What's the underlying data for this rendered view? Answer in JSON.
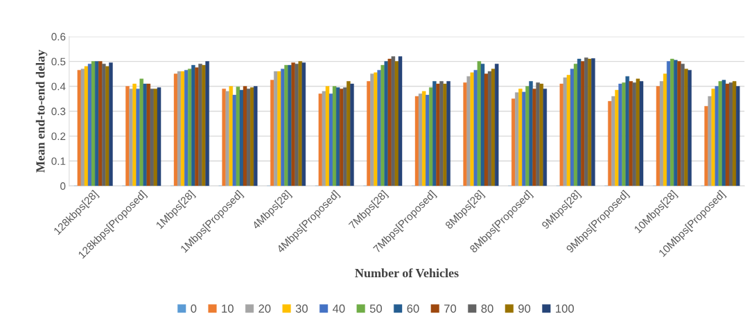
{
  "chart_data": {
    "type": "bar",
    "xlabel": "Number of Vehicles",
    "ylabel": "Mean end-to-end delay",
    "categories": [
      "128kbps[28]",
      "128kbps[Proposed]",
      "1Mbps[28]",
      "1Mbps[Proposed]",
      "4Mbps[28]",
      "4Mbps[Proposed]",
      "7Mbps[28]",
      "7Mbps[Proposed]",
      "8Mbps[28]",
      "8Mbps[Proposed]",
      "9Mbps[28]",
      "9Mbps[Proposed]",
      "10Mbps[28]",
      "10Mbps[Proposed]"
    ],
    "series": [
      {
        "name": "0",
        "color": "#5b9bd5",
        "values": [
          0,
          0,
          0,
          0,
          0,
          0,
          0,
          0,
          0,
          0,
          0,
          0,
          0,
          0
        ]
      },
      {
        "name": "10",
        "color": "#ed7d31",
        "values": [
          0.465,
          0.4,
          0.45,
          0.39,
          0.425,
          0.37,
          0.42,
          0.36,
          0.415,
          0.35,
          0.41,
          0.34,
          0.4,
          0.32
        ]
      },
      {
        "name": "20",
        "color": "#a5a5a5",
        "values": [
          0.47,
          0.39,
          0.46,
          0.38,
          0.46,
          0.38,
          0.45,
          0.37,
          0.44,
          0.375,
          0.435,
          0.36,
          0.42,
          0.36
        ]
      },
      {
        "name": "30",
        "color": "#ffc000",
        "values": [
          0.48,
          0.41,
          0.46,
          0.4,
          0.46,
          0.4,
          0.455,
          0.38,
          0.455,
          0.39,
          0.445,
          0.385,
          0.45,
          0.39
        ]
      },
      {
        "name": "40",
        "color": "#4472c4",
        "values": [
          0.49,
          0.39,
          0.465,
          0.365,
          0.47,
          0.37,
          0.465,
          0.365,
          0.465,
          0.377,
          0.47,
          0.41,
          0.5,
          0.4
        ]
      },
      {
        "name": "50",
        "color": "#70ad47",
        "values": [
          0.5,
          0.43,
          0.47,
          0.398,
          0.485,
          0.4,
          0.485,
          0.395,
          0.5,
          0.4,
          0.49,
          0.415,
          0.51,
          0.42
        ]
      },
      {
        "name": "60",
        "color": "#255e91",
        "values": [
          0.5,
          0.41,
          0.485,
          0.385,
          0.485,
          0.395,
          0.5,
          0.42,
          0.49,
          0.42,
          0.51,
          0.44,
          0.505,
          0.425
        ]
      },
      {
        "name": "70",
        "color": "#9e480e",
        "values": [
          0.5,
          0.41,
          0.475,
          0.4,
          0.495,
          0.39,
          0.51,
          0.41,
          0.45,
          0.39,
          0.5,
          0.42,
          0.5,
          0.41
        ]
      },
      {
        "name": "80",
        "color": "#636363",
        "values": [
          0.49,
          0.39,
          0.49,
          0.39,
          0.49,
          0.395,
          0.52,
          0.42,
          0.46,
          0.415,
          0.515,
          0.415,
          0.49,
          0.415
        ]
      },
      {
        "name": "90",
        "color": "#997300",
        "values": [
          0.48,
          0.39,
          0.485,
          0.395,
          0.5,
          0.42,
          0.5,
          0.41,
          0.47,
          0.41,
          0.51,
          0.43,
          0.47,
          0.42
        ]
      },
      {
        "name": "100",
        "color": "#264478",
        "values": [
          0.495,
          0.395,
          0.5,
          0.4,
          0.495,
          0.41,
          0.52,
          0.42,
          0.49,
          0.39,
          0.512,
          0.42,
          0.465,
          0.4
        ]
      }
    ],
    "ylim": [
      0,
      0.6
    ],
    "yticks": [
      0,
      0.1,
      0.2,
      0.3,
      0.4,
      0.5,
      0.6
    ],
    "grid": "y",
    "legend": "bottom"
  }
}
